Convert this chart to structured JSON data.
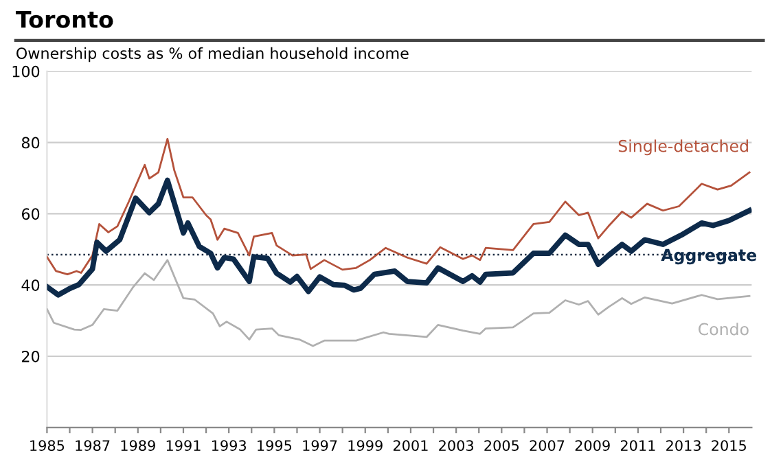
{
  "chart_data": {
    "type": "line",
    "title": "Toronto",
    "subtitle": "Ownership costs as % of median household income",
    "series": [
      {
        "name": "Single-detached",
        "color": "#b5523b",
        "x": [
          1985.0,
          1985.4,
          1985.9,
          1986.3,
          1986.5,
          1987.0,
          1987.3,
          1987.7,
          1988.1,
          1988.6,
          1989.3,
          1989.5,
          1989.9,
          1990.3,
          1990.6,
          1991.0,
          1991.4,
          1992.0,
          1992.2,
          1992.5,
          1992.8,
          1993.4,
          1993.9,
          1994.1,
          1994.9,
          1995.1,
          1995.8,
          1996.4,
          1996.6,
          1997.2,
          1998.0,
          1998.6,
          1999.2,
          1999.9,
          2000.85,
          2001.7,
          2002.3,
          2003.3,
          2003.7,
          2004.05,
          2004.3,
          2005.5,
          2006.4,
          2007.1,
          2007.8,
          2008.4,
          2008.8,
          2009.25,
          2009.7,
          2010.3,
          2010.7,
          2011.4,
          2012.1,
          2012.8,
          2013.8,
          2014.5,
          2015.1,
          2015.9
        ],
        "values": [
          47.9,
          43.9,
          43.0,
          43.9,
          43.4,
          48.3,
          57.1,
          54.8,
          56.5,
          63.4,
          73.7,
          69.9,
          71.6,
          81.0,
          72.2,
          64.6,
          64.6,
          59.6,
          58.4,
          52.7,
          55.8,
          54.6,
          48.3,
          53.6,
          54.6,
          51.1,
          48.3,
          48.6,
          44.5,
          47.0,
          44.3,
          44.8,
          47.0,
          50.4,
          47.7,
          46.0,
          50.6,
          47.3,
          48.3,
          47.0,
          50.4,
          49.8,
          57.1,
          57.7,
          63.4,
          59.6,
          60.3,
          53.1,
          56.5,
          60.6,
          58.9,
          62.8,
          60.9,
          62.1,
          68.4,
          66.8,
          67.9,
          71.6
        ]
      },
      {
        "name": "Aggregate",
        "color": "#0d2a4a",
        "x": [
          1985.0,
          1985.5,
          1986.0,
          1986.4,
          1987.0,
          1987.2,
          1987.6,
          1988.2,
          1988.9,
          1989.5,
          1989.9,
          1990.3,
          1990.7,
          1991.0,
          1991.2,
          1991.7,
          1992.2,
          1992.5,
          1992.8,
          1993.2,
          1993.9,
          1994.1,
          1994.7,
          1995.1,
          1995.7,
          1996.0,
          1996.5,
          1997.0,
          1997.6,
          1998.1,
          1998.5,
          1998.8,
          1999.4,
          2000.3,
          2000.85,
          2001.7,
          2002.2,
          2003.3,
          2003.7,
          2004.05,
          2004.3,
          2005.5,
          2006.4,
          2007.1,
          2007.8,
          2008.4,
          2008.8,
          2009.25,
          2009.7,
          2010.3,
          2010.7,
          2011.3,
          2012.1,
          2012.9,
          2013.8,
          2014.3,
          2015.0,
          2015.9
        ],
        "values": [
          39.5,
          37.2,
          39.0,
          40.1,
          44.5,
          52.0,
          49.5,
          52.7,
          64.4,
          60.3,
          62.8,
          69.4,
          60.9,
          54.6,
          57.4,
          50.8,
          48.9,
          44.8,
          47.7,
          47.3,
          41.0,
          47.9,
          47.5,
          43.3,
          40.8,
          42.4,
          38.2,
          42.3,
          40.1,
          39.9,
          38.6,
          39.1,
          43.0,
          43.9,
          41.0,
          40.6,
          44.8,
          41.0,
          42.6,
          40.8,
          43.0,
          43.4,
          48.9,
          48.9,
          54.0,
          51.4,
          51.4,
          45.8,
          48.3,
          51.4,
          49.5,
          52.7,
          51.4,
          54.0,
          57.4,
          56.7,
          58.1,
          60.9
        ]
      },
      {
        "name": "Condo",
        "color": "#b0b0b0",
        "x": [
          1985.0,
          1985.3,
          1986.2,
          1986.5,
          1987.0,
          1987.5,
          1988.1,
          1988.8,
          1989.3,
          1989.7,
          1990.3,
          1991.0,
          1991.5,
          1992.3,
          1992.6,
          1992.9,
          1993.5,
          1993.9,
          1994.2,
          1994.9,
          1995.2,
          1996.1,
          1996.7,
          1997.2,
          1998.6,
          1999.8,
          2000.05,
          2001.7,
          2002.2,
          2003.3,
          2004.05,
          2004.3,
          2005.5,
          2006.4,
          2007.1,
          2007.8,
          2008.4,
          2008.8,
          2009.25,
          2009.7,
          2010.3,
          2010.7,
          2011.3,
          2012.5,
          2013.8,
          2014.5,
          2015.9
        ],
        "values": [
          33.2,
          29.4,
          27.5,
          27.4,
          28.8,
          33.2,
          32.8,
          39.5,
          43.3,
          41.4,
          47.0,
          36.3,
          35.9,
          32.0,
          28.4,
          29.7,
          27.5,
          24.7,
          27.5,
          27.8,
          25.9,
          24.7,
          22.9,
          24.4,
          24.4,
          26.7,
          26.3,
          25.4,
          28.8,
          27.2,
          26.3,
          27.8,
          28.1,
          32.0,
          32.2,
          35.7,
          34.5,
          35.5,
          31.7,
          33.8,
          36.3,
          34.7,
          36.5,
          34.8,
          37.2,
          36.0,
          36.9
        ]
      }
    ],
    "xlim": [
      1985,
      2016
    ],
    "xticks": [
      1985,
      {
        "value": 1986,
        "label": null
      },
      1987,
      {
        "value": 1988,
        "label": null
      },
      1989,
      {
        "value": 1990,
        "label": null
      },
      1991,
      {
        "value": 1992,
        "label": null
      },
      1993,
      {
        "value": 1994,
        "label": null
      },
      1995,
      {
        "value": 1996,
        "label": null
      },
      1997,
      {
        "value": 1998,
        "label": null
      },
      1999,
      {
        "value": 2000,
        "label": null
      },
      2001,
      {
        "value": 2002,
        "label": null
      },
      2003,
      {
        "value": 2004,
        "label": null
      },
      2005,
      {
        "value": 2006,
        "label": null
      },
      2007,
      {
        "value": 2008,
        "label": null
      },
      2009,
      {
        "value": 2010,
        "label": null
      },
      2011,
      {
        "value": 2012,
        "label": null
      },
      2013,
      {
        "value": 2014,
        "label": null
      },
      2015
    ],
    "ylim": [
      0,
      100
    ],
    "yticks": [
      20,
      40,
      60,
      80,
      100
    ],
    "grid": "y",
    "legend": false,
    "marker": "none",
    "line_style": "solid",
    "ref_lines": [
      {
        "axis": "y",
        "value": 48.5,
        "color": "#1a2a40",
        "line_style": "dotted"
      }
    ]
  }
}
